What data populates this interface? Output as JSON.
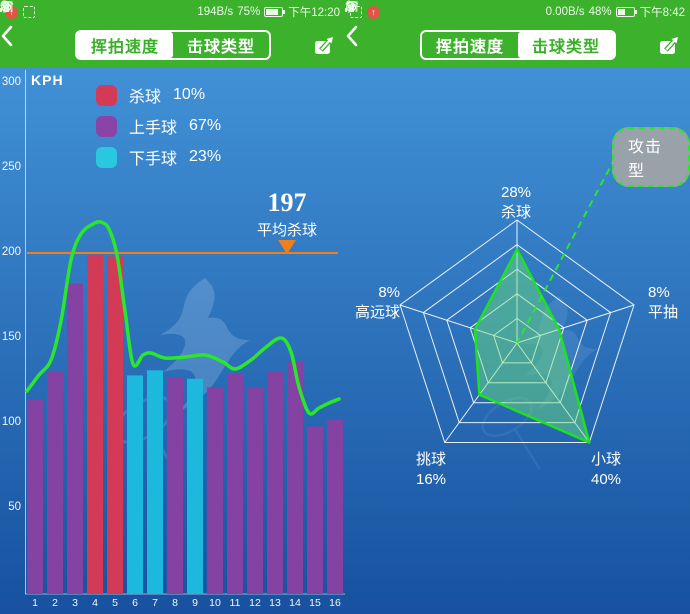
{
  "left_phone": {
    "status": {
      "net_speed": "194B/s",
      "battery_pct": "75%",
      "battery_fill": 75,
      "time": "下午12:20"
    },
    "nav": {
      "tab_speed": "挥拍速度",
      "tab_type": "击球类型"
    }
  },
  "right_phone": {
    "status": {
      "net_speed": "0.00B/s",
      "battery_pct": "48%",
      "battery_fill": 48,
      "time": "下午8:42"
    },
    "nav": {
      "tab_speed": "挥拍速度",
      "tab_type": "击球类型"
    }
  },
  "chart_data": [
    {
      "type": "bar",
      "title": "挥拍速度",
      "ylabel": "KPH",
      "ylim": [
        0,
        300
      ],
      "yticks": [
        300,
        250,
        200,
        150,
        100,
        50
      ],
      "categories": [
        "1",
        "2",
        "3",
        "4",
        "5",
        "6",
        "7",
        "8",
        "9",
        "10",
        "11",
        "12",
        "13",
        "14",
        "15",
        "16"
      ],
      "values": [
        114,
        130,
        182,
        199,
        198,
        128,
        131,
        127,
        126,
        121,
        129,
        121,
        130,
        136,
        98,
        102
      ],
      "bar_types": [
        "overhand",
        "overhand",
        "overhand",
        "smash",
        "smash",
        "underhand",
        "underhand",
        "overhand",
        "underhand",
        "overhand",
        "overhand",
        "overhand",
        "overhand",
        "overhand",
        "overhand",
        "overhand"
      ],
      "series_colors": {
        "smash": "#d23a55",
        "overhand": "#8442a2",
        "underhand": "#1cb8de"
      },
      "legend": [
        {
          "label": "杀球",
          "pct": "10%",
          "color": "#d23a55"
        },
        {
          "label": "上手球",
          "pct": "67%",
          "color": "#8a44a8"
        },
        {
          "label": "下手球",
          "pct": "23%",
          "color": "#29c8e0"
        }
      ],
      "average_smash": {
        "value": "197",
        "label": "平均杀球",
        "line_kph": 200
      },
      "trend_kph": [
        [
          0.6,
          119
        ],
        [
          1.2,
          128
        ],
        [
          1.8,
          137
        ],
        [
          2.3,
          160
        ],
        [
          2.8,
          196
        ],
        [
          3.3,
          211
        ],
        [
          3.9,
          217
        ],
        [
          4.3,
          218
        ],
        [
          4.7,
          214
        ],
        [
          5.1,
          199
        ],
        [
          5.5,
          166
        ],
        [
          5.9,
          135
        ],
        [
          6.4,
          140
        ],
        [
          6.8,
          141
        ],
        [
          7.5,
          138
        ],
        [
          8.5,
          139
        ],
        [
          9.5,
          140
        ],
        [
          10.4,
          136
        ],
        [
          11.0,
          132
        ],
        [
          11.8,
          137
        ],
        [
          12.5,
          144
        ],
        [
          13.3,
          150
        ],
        [
          13.8,
          142
        ],
        [
          14.2,
          121
        ],
        [
          14.7,
          106
        ],
        [
          15.2,
          109
        ],
        [
          15.7,
          112
        ],
        [
          16.2,
          114
        ]
      ],
      "line_color": "#2ae62c",
      "avg_line_color": "#ee7f1c"
    },
    {
      "type": "radar",
      "max": 40,
      "rings": 5,
      "axes": [
        {
          "label": "杀球",
          "value": 28,
          "pct_label": "28%"
        },
        {
          "label": "平抽",
          "value": 8,
          "pct_label": "8%"
        },
        {
          "label": "小球",
          "value": 40,
          "pct_label": "40%"
        },
        {
          "label": "挑球",
          "value": 16,
          "pct_label": "16%"
        },
        {
          "label": "高远球",
          "value": 8,
          "pct_label": "8%"
        }
      ],
      "badge": "攻击型",
      "fill_color": "rgba(110,228,120,0.45)",
      "stroke_color": "#1de21d"
    }
  ]
}
